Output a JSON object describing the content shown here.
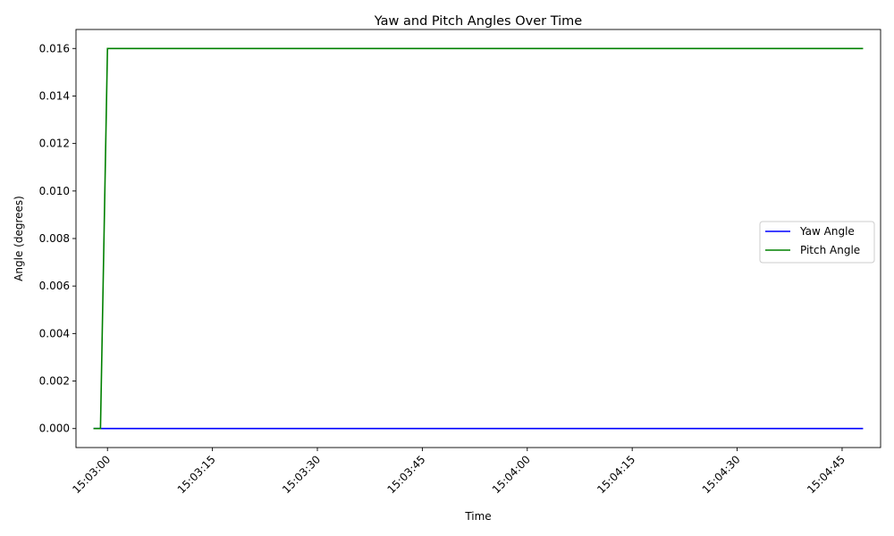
{
  "chart_data": {
    "type": "line",
    "title": "Yaw and Pitch Angles Over Time",
    "xlabel": "Time",
    "ylabel": "Angle (degrees)",
    "x_ticks": [
      "15:03:00",
      "15:03:15",
      "15:03:30",
      "15:03:45",
      "15:04:00",
      "15:04:15",
      "15:04:30",
      "15:04:45"
    ],
    "y_ticks": [
      "0.000",
      "0.002",
      "0.004",
      "0.006",
      "0.008",
      "0.010",
      "0.012",
      "0.014",
      "0.016"
    ],
    "xlim": [
      "15:02:55.5",
      "15:04:50.5"
    ],
    "ylim": [
      -0.0008,
      0.0168
    ],
    "grid": false,
    "legend_position": "center-right",
    "series": [
      {
        "name": "Yaw Angle",
        "color": "#0000ff",
        "x": [
          "15:02:58",
          "15:04:48"
        ],
        "y": [
          0.0,
          0.0
        ]
      },
      {
        "name": "Pitch Angle",
        "color": "#008000",
        "x": [
          "15:02:58",
          "15:02:59",
          "15:03:00",
          "15:04:48"
        ],
        "y": [
          0.0,
          0.0,
          0.016,
          0.016
        ]
      }
    ]
  }
}
